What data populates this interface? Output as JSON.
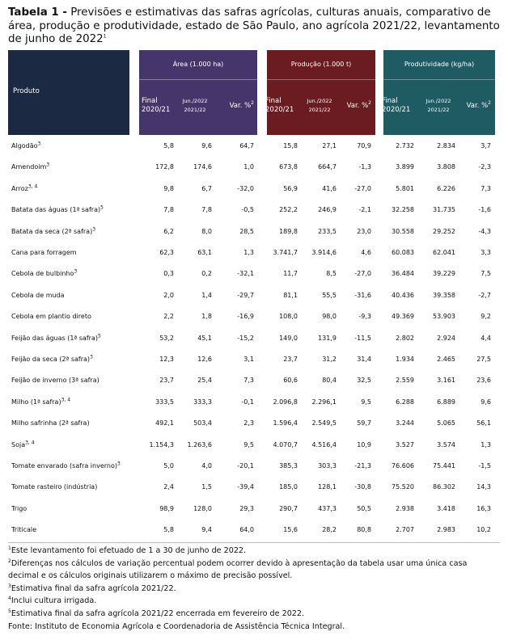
{
  "header": {
    "label": "Tabela 1 -",
    "title": "Previsões e estimativas das safras agrícolas, culturas anuais, comparativo de área, produção e produtividade, estado de São Paulo, ano agrícola 2021/22, levantamento de junho de 2022",
    "note": "1"
  },
  "table": {
    "product_header": "Produto",
    "groups": [
      {
        "title": "Área (1.000 ha)",
        "columns": [
          {
            "line1": "Final",
            "line2": "2020/21"
          },
          {
            "line1": "Jun./2022",
            "line2": "2021/22"
          },
          {
            "line1": "Var. %",
            "note": "2"
          }
        ]
      },
      {
        "title": "Produção (1.000 t)",
        "columns": [
          {
            "line1": "Final",
            "line2": "2020/21"
          },
          {
            "line1": "Jun./2022",
            "line2": "2021/22"
          },
          {
            "line1": "Var. %",
            "note": "2"
          }
        ]
      },
      {
        "title": "Produtividade (kg/ha)",
        "columns": [
          {
            "line1": "Final",
            "line2": "2020/21"
          },
          {
            "line1": "Jun./2022",
            "line2": "2021/22"
          },
          {
            "line1": "Var. %",
            "note": "2"
          }
        ]
      }
    ],
    "rows": [
      {
        "name": "Algodão",
        "note": "3",
        "values": [
          "5,8",
          "9,6",
          "64,7",
          "15,8",
          "27,1",
          "70,9",
          "2.732",
          "2.834",
          "3,7"
        ]
      },
      {
        "name": "Amendoim",
        "note": "3",
        "values": [
          "172,8",
          "174,6",
          "1,0",
          "673,8",
          "664,7",
          "-1,3",
          "3.899",
          "3.808",
          "-2,3"
        ]
      },
      {
        "name": "Arroz",
        "note": "3, 4",
        "values": [
          "9,8",
          "6,7",
          "-32,0",
          "56,9",
          "41,6",
          "-27,0",
          "5.801",
          "6.226",
          "7,3"
        ]
      },
      {
        "name": "Batata das águas (1ª safra)",
        "note": "5",
        "values": [
          "7,8",
          "7,8",
          "-0,5",
          "252,2",
          "246,9",
          "-2,1",
          "32.258",
          "31.735",
          "-1,6"
        ]
      },
      {
        "name": "Batata da seca (2ª safra)",
        "note": "3",
        "values": [
          "6,2",
          "8,0",
          "28,5",
          "189,8",
          "233,5",
          "23,0",
          "30.558",
          "29.252",
          "-4,3"
        ]
      },
      {
        "name": "Cana para forragem",
        "values": [
          "62,3",
          "63,1",
          "1,3",
          "3.741,7",
          "3.914,6",
          "4,6",
          "60.083",
          "62.041",
          "3,3"
        ]
      },
      {
        "name": "Cebola de bulbinho",
        "note": "3",
        "values": [
          "0,3",
          "0,2",
          "-32,1",
          "11,7",
          "8,5",
          "-27,0",
          "36.484",
          "39.229",
          "7,5"
        ]
      },
      {
        "name": "Cebola de muda",
        "values": [
          "2,0",
          "1,4",
          "-29,7",
          "81,1",
          "55,5",
          "-31,6",
          "40.436",
          "39.358",
          "-2,7"
        ]
      },
      {
        "name": "Cebola em plantio direto",
        "values": [
          "2,2",
          "1,8",
          "-16,9",
          "108,0",
          "98,0",
          "-9,3",
          "49.369",
          "53.903",
          "9,2"
        ]
      },
      {
        "name": "Feijão das águas (1ª safra)",
        "note": "5",
        "values": [
          "53,2",
          "45,1",
          "-15,2",
          "149,0",
          "131,9",
          "-11,5",
          "2.802",
          "2.924",
          "4,4"
        ]
      },
      {
        "name": "Feijão da seca (2ª safra)",
        "note": "3",
        "values": [
          "12,3",
          "12,6",
          "3,1",
          "23,7",
          "31,2",
          "31,4",
          "1.934",
          "2.465",
          "27,5"
        ]
      },
      {
        "name": "Feijão de inverno (3ª safra)",
        "values": [
          "23,7",
          "25,4",
          "7,3",
          "60,6",
          "80,4",
          "32,5",
          "2.559",
          "3.161",
          "23,6"
        ]
      },
      {
        "name": "Milho (1ª safra)",
        "note": "3, 4",
        "values": [
          "333,5",
          "333,3",
          "-0,1",
          "2.096,8",
          "2.296,1",
          "9,5",
          "6.288",
          "6.889",
          "9,6"
        ]
      },
      {
        "name": "Milho safrinha (2ª safra)",
        "values": [
          "492,1",
          "503,4",
          "2,3",
          "1.596,4",
          "2.549,5",
          "59,7",
          "3.244",
          "5.065",
          "56,1"
        ]
      },
      {
        "name": "Soja",
        "note": "3, 4",
        "values": [
          "1.154,3",
          "1.263,6",
          "9,5",
          "4.070,7",
          "4.516,4",
          "10,9",
          "3.527",
          "3.574",
          "1,3"
        ]
      },
      {
        "name": "Tomate envarado (safra inverno)",
        "note": "3",
        "values": [
          "5,0",
          "4,0",
          "-20,1",
          "385,3",
          "303,3",
          "-21,3",
          "76.606",
          "75.441",
          "-1,5"
        ]
      },
      {
        "name": "Tomate rasteiro (indústria)",
        "values": [
          "2,4",
          "1,5",
          "-39,4",
          "185,0",
          "128,1",
          "-30,8",
          "75.520",
          "86.302",
          "14,3"
        ]
      },
      {
        "name": "Trigo",
        "values": [
          "98,9",
          "128,0",
          "29,3",
          "290,7",
          "437,3",
          "50,5",
          "2.938",
          "3.418",
          "16,3"
        ]
      },
      {
        "name": "Triticale",
        "values": [
          "5,8",
          "9,4",
          "64,0",
          "15,6",
          "28,2",
          "80,8",
          "2.707",
          "2.983",
          "10,2"
        ]
      }
    ]
  },
  "footnotes": [
    {
      "note": "1",
      "text": "Este levantamento foi efetuado de 1 a 30 de junho de 2022."
    },
    {
      "note": "2",
      "text": "Diferenças nos cálculos de variação percentual podem ocorrer devido à apresentação da tabela usar uma única casa decimal e os cálculos originais utilizarem o máximo de precisão possível."
    },
    {
      "note": "3",
      "text": "Estimativa final da safra agrícola 2021/22."
    },
    {
      "note": "4",
      "text": "Inclui cultura irrigada."
    },
    {
      "note": "5",
      "text": "Estimativa final da safra agrícola 2021/22 encerrada em fevereiro de 2022."
    }
  ],
  "source": "Fonte: Instituto de Economia Agrícola e Coordenadoria de Assistência Técnica Integral."
}
